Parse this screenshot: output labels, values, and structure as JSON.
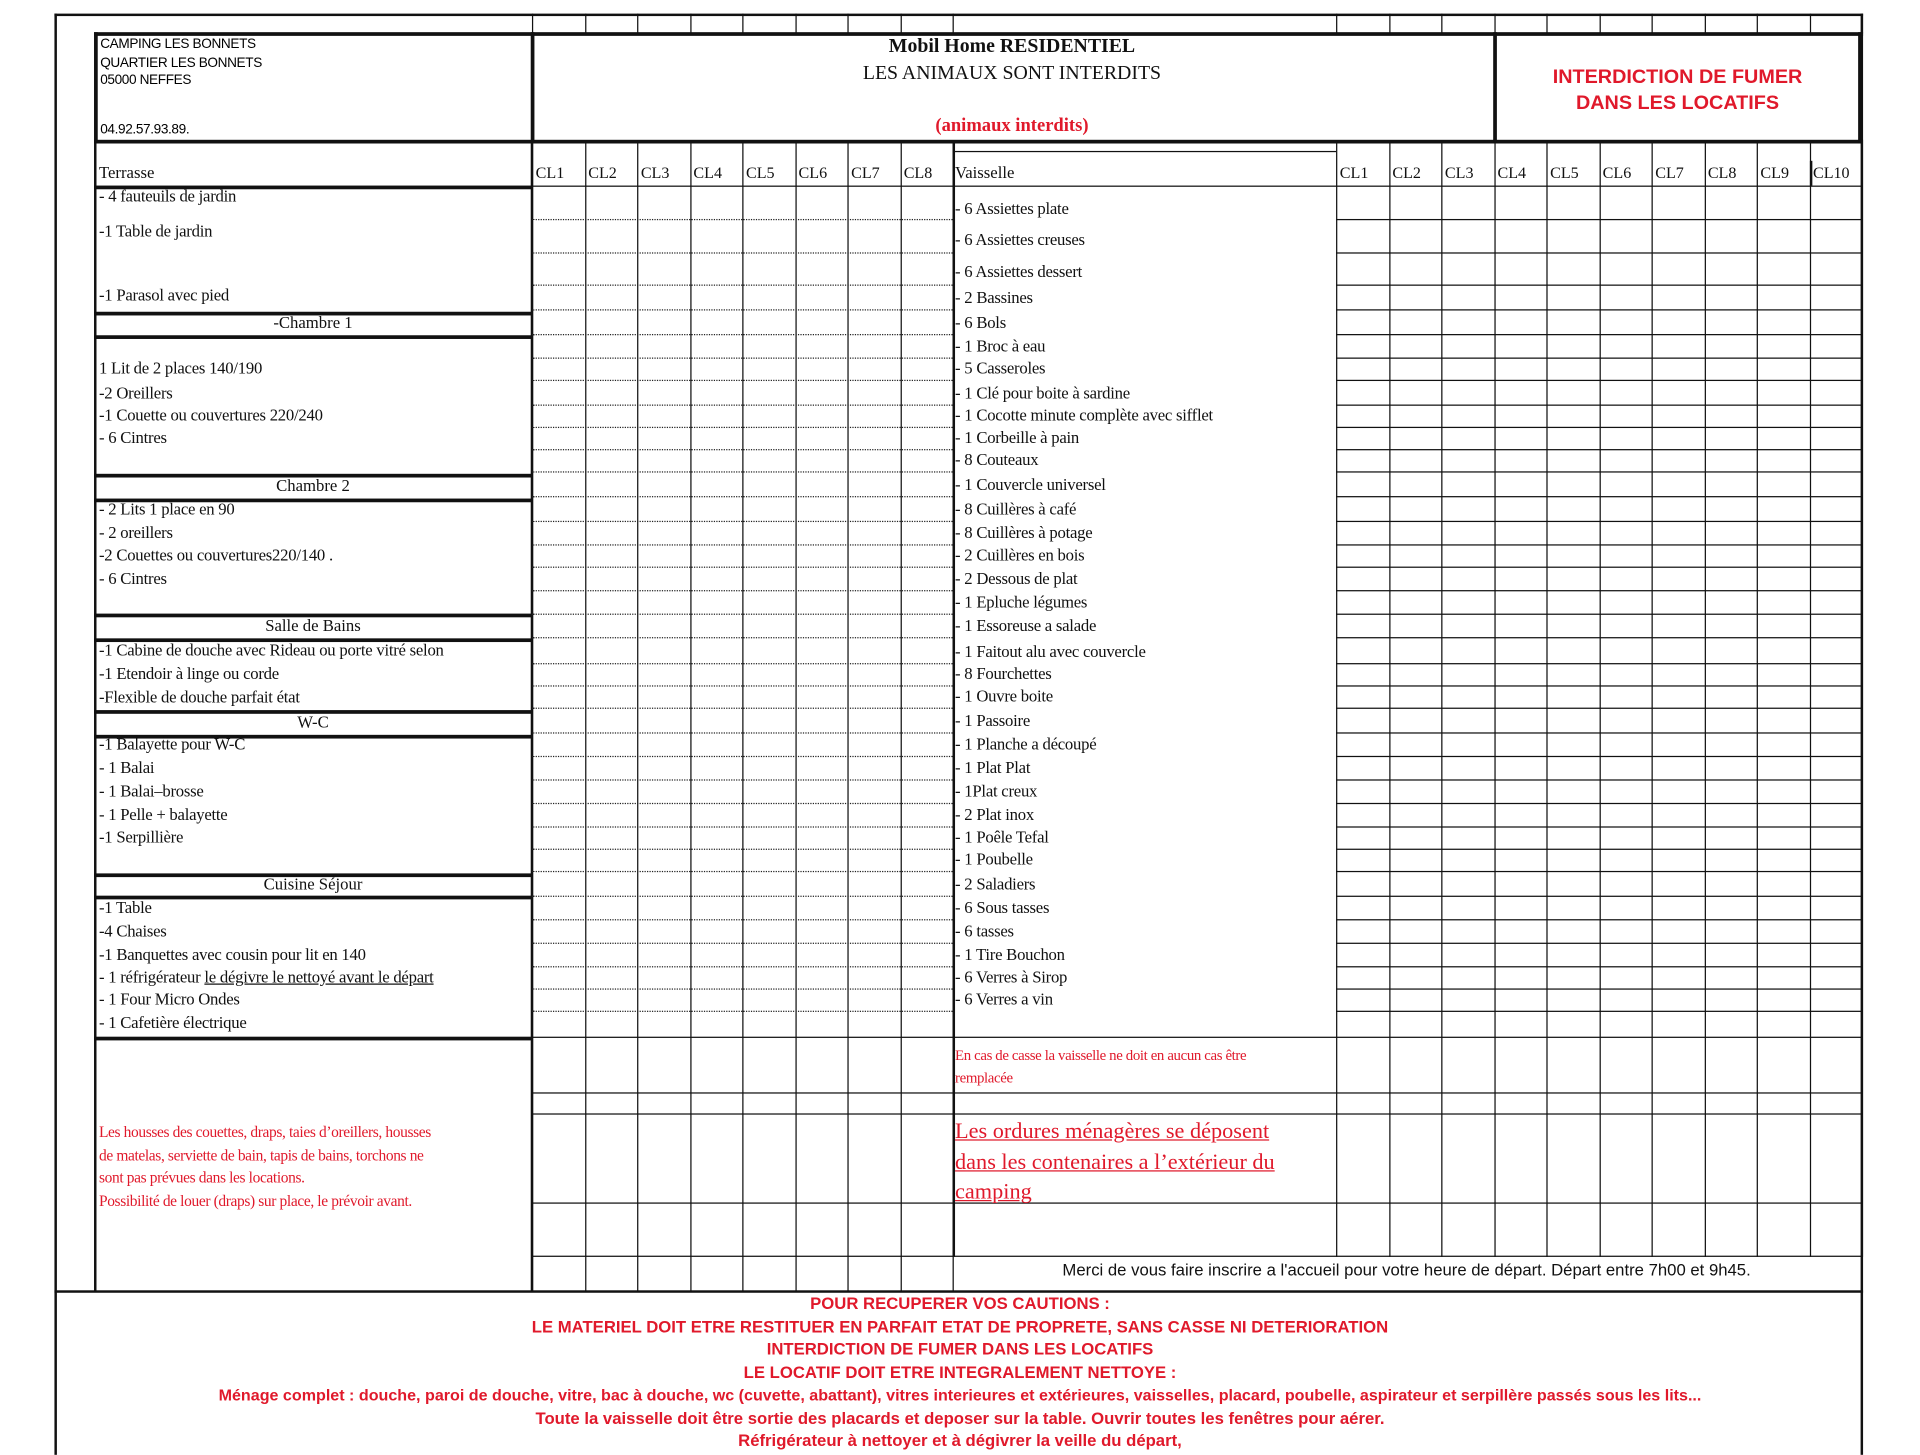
{
  "header": {
    "address": [
      "CAMPING LES BONNETS",
      "QUARTIER LES BONNETS",
      "05000 NEFFES"
    ],
    "phone": "04.92.57.93.89.",
    "title_line1": "Mobil Home RESIDENTIEL",
    "title_line2": "LES ANIMAUX SONT INTERDITS",
    "title_note": "(animaux interdits)",
    "smoking_line1": "INTERDICTION DE FUMER",
    "smoking_line2": "DANS LES LOCATIFS"
  },
  "left_table": {
    "header": "Terrasse",
    "columns": [
      "CL1",
      "CL2",
      "CL3",
      "CL4",
      "CL5",
      "CL6",
      "CL7",
      "CL8"
    ],
    "items": [
      {
        "text": "- 4   fauteuils de jardin"
      },
      {
        "text": " -1  Table de jardin"
      },
      {
        "text": " -1 Parasol avec pied"
      },
      {
        "text": "-Chambre 1",
        "section": true
      },
      {
        "text": "1 Lit de 2 places  140/190"
      },
      {
        "text": "-2 Oreillers"
      },
      {
        "text": "-1 Couette ou couvertures 220/240"
      },
      {
        "text": "- 6 Cintres"
      },
      {
        "text": "Chambre  2",
        "section": true
      },
      {
        "text": " - 2 Lits  1 place en 90"
      },
      {
        "text": " - 2  oreillers"
      },
      {
        "text": " -2 Couettes ou couvertures220/140  ."
      },
      {
        "text": "- 6 Cintres"
      },
      {
        "text": "Salle de Bains",
        "section": true
      },
      {
        "text": "-1 Cabine de douche avec Rideau ou porte vitré selon"
      },
      {
        "text": "-1 Etendoir à linge ou corde"
      },
      {
        "text": "-Flexible de douche parfait état"
      },
      {
        "text": "W-C",
        "section": true
      },
      {
        "text": "-1 Balayette pour W-C"
      },
      {
        "text": "- 1 Balai"
      },
      {
        "text": "- 1 Balai–brosse"
      },
      {
        "text": "- 1 Pelle + balayette"
      },
      {
        "text": "-1 Serpillière"
      },
      {
        "text": "Cuisine Séjour",
        "section": true
      },
      {
        "text": "-1 Table"
      },
      {
        "text": " -4 Chaises"
      },
      {
        "text": " -1 Banquettes avec cousin pour lit en 140"
      },
      {
        "text": "- 1 réfrigérateur ",
        "underlined": "le dégivre le nettoyé avant le départ "
      },
      {
        "text": "- 1 Four Micro Ondes"
      },
      {
        "text": "- 1 Cafetière électrique"
      }
    ],
    "note": [
      "Les housses des couettes, draps, taies d’oreillers, housses",
      "de matelas, serviette de bain, tapis de bains, torchons  ne",
      "sont pas prévues dans les locations.",
      "Possibilité de louer (draps) sur place,  le prévoir avant."
    ]
  },
  "right_table": {
    "header": "Vaisselle",
    "columns": [
      "CL1",
      "CL2",
      "CL3",
      "CL4",
      "CL5",
      "CL6",
      "CL7",
      "CL8",
      "CL9",
      "CL10"
    ],
    "items": [
      "- 6 Assiettes plate",
      "- 6 Assiettes creuses",
      "- 6 Assiettes dessert",
      "- 2 Bassines",
      "- 6 Bols",
      "- 1 Broc à eau",
      "- 5 Casseroles",
      "- 1 Clé pour boite à sardine",
      "- 1 Cocotte minute complète avec sifflet",
      "- 1 Corbeille à pain",
      "- 8 Couteaux",
      "- 1 Couvercle universel",
      "- 8 Cuillères à café",
      "- 8 Cuillères à potage",
      "- 2 Cuillères en bois",
      "- 2 Dessous de plat",
      "- 1 Epluche légumes",
      "- 1 Essoreuse a salade",
      "- 1 Faitout alu avec couvercle",
      "- 8 Fourchettes",
      "- 1 Ouvre boite",
      "- 1 Passoire",
      "- 1 Planche a découpé",
      "- 1 Plat Plat",
      "- 1Plat creux",
      "- 2 Plat inox",
      "- 1 Poêle Tefal",
      "- 1 Poubelle",
      "- 2 Saladiers",
      "- 6 Sous tasses",
      "- 6 tasses",
      "- 1 Tire Bouchon",
      "- 6 Verres à Sirop",
      "- 6 Verres a vin"
    ],
    "casse_note": [
      "En cas de casse la vaisselle ne doit en aucun cas être",
      "remplacée"
    ],
    "ordures_note": [
      "Les ordures ménagères se déposent ",
      "dans les contenaires a l’extérieur du ",
      "camping"
    ]
  },
  "departure_note": "Merci de vous faire inscrire a l'accueil pour votre heure de départ. Départ entre 7h00 et 9h45.",
  "footer": [
    "POUR RECUPERER VOS CAUTIONS :",
    "LE MATERIEL DOIT ETRE RESTITUER EN PARFAIT ETAT DE PROPRETE, SANS CASSE NI DETERIORATION",
    "INTERDICTION DE FUMER DANS LES LOCATIFS",
    "LE LOCATIF DOIT ETRE INTEGRALEMENT NETTOYE :",
    "Ménage complet : douche, paroi de douche, vitre, bac à douche, wc (cuvette, abattant), vitres interieures et extérieures, vaisselles, placard, poubelle, aspirateur et serpillère passés sous les lits...",
    "Toute la vaisselle doit être sortie des placards et deposer sur la table. Ouvrir toutes les fenêtres pour aérer.",
    "Réfrigérateur à nettoyer et à dégivrer la veille du départ,"
  ],
  "colors": {
    "red": "#e0192b",
    "ink": "#111111"
  }
}
